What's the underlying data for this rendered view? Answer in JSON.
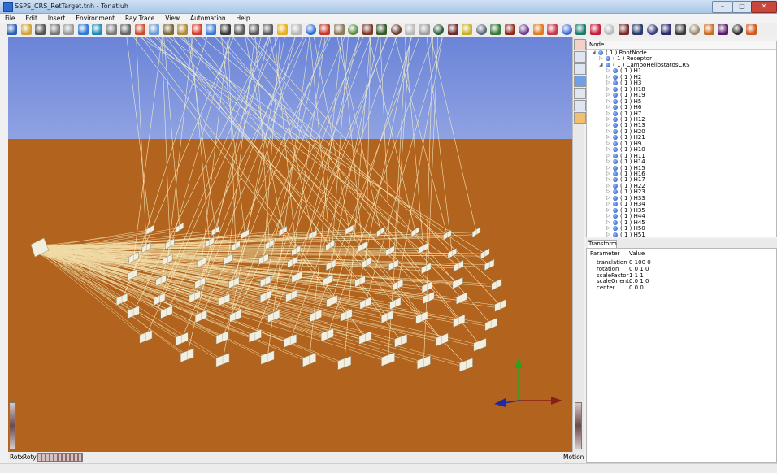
{
  "window": {
    "title": "SSPS_CRS_RetTarget.tnh - Tonatiuh",
    "min_label": "–",
    "max_label": "□",
    "close_label": "✕"
  },
  "menubar": {
    "items": [
      "File",
      "Edit",
      "Insert",
      "Environment",
      "Ray Trace",
      "View",
      "Automation",
      "Help"
    ]
  },
  "toolbar": {
    "icons": [
      "new-icon",
      "open-icon",
      "save-icon",
      "save-as-icon",
      "print-icon",
      "settings-icon",
      "undo-icon",
      "redo-icon",
      "dropdown-icon",
      "cut-icon",
      "copy-icon",
      "paste-icon",
      "paste-link-icon",
      "delete-icon",
      "node-icon",
      "surface-icon",
      "trace-icon",
      "trace-export-icon",
      "trace-options-icon",
      "sun-icon",
      "grid-icon",
      "sphere-icon",
      "photon-icon",
      "heliostat-icon",
      "tracker-icon",
      "flat-icon",
      "cone-icon",
      "cylinder-icon",
      "disk-icon",
      "paraboloid-icon",
      "hyperbola-icon",
      "parabolic-dish-icon",
      "checker-icon",
      "material-icon",
      "trough-icon",
      "mirror-icon",
      "box-icon",
      "triangle-icon",
      "lens-icon",
      "shape-a-icon",
      "shape-b-icon",
      "shape-c-icon",
      "shape-d-icon",
      "shape-e-icon",
      "shape-f-icon",
      "shape-g-icon",
      "shape-h-icon",
      "shape-i-icon",
      "shape-j-icon",
      "shape-k-icon",
      "shape-l-icon",
      "shape-m-icon",
      "shape-n-icon"
    ]
  },
  "viewport": {
    "bottom_left_label_1": "Rotx",
    "bottom_left_label_2": "Roty",
    "bottom_right_label": "Motion Z",
    "sky_color": "#6f88da",
    "ground_color": "#b2641f",
    "ray_color": "#fff9c8",
    "heliostat_color": "#f3efe0",
    "axis_colors": {
      "x": "#8b1d1d",
      "y": "#27a31e",
      "z": "#1b2aa8"
    }
  },
  "tree": {
    "header": "Node",
    "rows": [
      {
        "label": "( 1 )  RootNode",
        "level": 0
      },
      {
        "label": "( 1 )  Receptor",
        "level": 1
      },
      {
        "label": "( 1 )  CampoHeliostatosCRS",
        "level": 1
      },
      {
        "label": "( 1 )  H1",
        "level": 2
      },
      {
        "label": "( 1 )  H2",
        "level": 2
      },
      {
        "label": "( 1 )  H3",
        "level": 2
      },
      {
        "label": "( 1 )  H18",
        "level": 2
      },
      {
        "label": "( 1 )  H19",
        "level": 2
      },
      {
        "label": "( 1 )  H5",
        "level": 2
      },
      {
        "label": "( 1 )  H6",
        "level": 2
      },
      {
        "label": "( 1 )  H7",
        "level": 2
      },
      {
        "label": "( 1 )  H12",
        "level": 2
      },
      {
        "label": "( 1 )  H13",
        "level": 2
      },
      {
        "label": "( 1 )  H20",
        "level": 2
      },
      {
        "label": "( 1 )  H21",
        "level": 2
      },
      {
        "label": "( 1 )  H9",
        "level": 2
      },
      {
        "label": "( 1 )  H10",
        "level": 2
      },
      {
        "label": "( 1 )  H11",
        "level": 2
      },
      {
        "label": "( 1 )  H14",
        "level": 2
      },
      {
        "label": "( 1 )  H15",
        "level": 2
      },
      {
        "label": "( 1 )  H16",
        "level": 2
      },
      {
        "label": "( 1 )  H17",
        "level": 2
      },
      {
        "label": "( 1 )  H22",
        "level": 2
      },
      {
        "label": "( 1 )  H23",
        "level": 2
      },
      {
        "label": "( 1 )  H33",
        "level": 2
      },
      {
        "label": "( 1 )  H34",
        "level": 2
      },
      {
        "label": "( 1 )  H35",
        "level": 2
      },
      {
        "label": "( 1 )  H44",
        "level": 2
      },
      {
        "label": "( 1 )  H45",
        "level": 2
      },
      {
        "label": "( 1 )  H50",
        "level": 2
      },
      {
        "label": "( 1 )  H51",
        "level": 2
      }
    ]
  },
  "transform": {
    "tab_label": "Transform",
    "col_parameter": "Parameter",
    "col_value": "Value",
    "rows": [
      {
        "name": "translation",
        "value": "0 100 0"
      },
      {
        "name": "rotation",
        "value": "0 0 1 0"
      },
      {
        "name": "scaleFactor",
        "value": "1 1 1"
      },
      {
        "name": "scaleOrient...",
        "value": "0 0 1 0"
      },
      {
        "name": "center",
        "value": "0 0 0"
      }
    ]
  }
}
